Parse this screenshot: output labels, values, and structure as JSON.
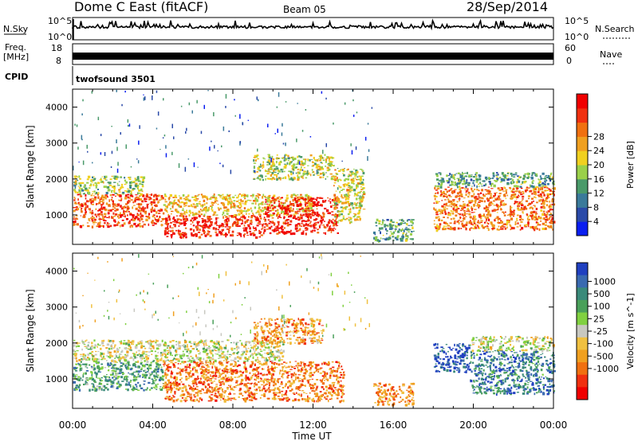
{
  "header": {
    "station": "Dome C East (fitACF)",
    "beam": "Beam 05",
    "date": "28/Sep/2014"
  },
  "top_panels": {
    "nsky_label": "N.Sky",
    "nsky_ticks": [
      "10^5",
      "10^0"
    ],
    "nsearch_label": "N.Search",
    "freq_label_1": "Freq.",
    "freq_label_2": "[MHz]",
    "freq_ticks": [
      "18",
      "8"
    ],
    "nave_label": "Nave",
    "nave_ticks": [
      "60",
      "0"
    ],
    "cpid_label": "CPID",
    "cpid_value": "twofsound 3501"
  },
  "chart_data": [
    {
      "type": "heatmap",
      "name": "Power",
      "xlabel": "Time UT",
      "ylabel": "Slant Range [km]",
      "xlim": [
        0,
        24
      ],
      "ylim": [
        180,
        4500
      ],
      "x_ticks": [
        "00:00",
        "04:00",
        "08:00",
        "12:00",
        "16:00",
        "20:00",
        "00:00"
      ],
      "y_ticks": [
        "1000",
        "2000",
        "3000",
        "4000"
      ],
      "colorbar": {
        "label": "Power [dB]",
        "ticks": [
          "4",
          "8",
          "12",
          "16",
          "20",
          "24",
          "28"
        ],
        "colors": [
          "#0a1ef0",
          "#2a4aa8",
          "#3a7a9a",
          "#4a9a6a",
          "#9ad04a",
          "#f0d020",
          "#f0a020",
          "#f07010",
          "#f03010",
          "#f00000"
        ]
      },
      "regions": [
        {
          "t0": 0.0,
          "t1": 4.5,
          "r0": 700,
          "r1": 1600,
          "level": 0.8
        },
        {
          "t0": 0.0,
          "t1": 3.5,
          "r0": 1600,
          "r1": 2100,
          "level": 0.45
        },
        {
          "t0": 4.5,
          "t1": 9.5,
          "r0": 400,
          "r1": 1000,
          "level": 0.9
        },
        {
          "t0": 4.5,
          "t1": 12.0,
          "r0": 1000,
          "r1": 1600,
          "level": 0.6
        },
        {
          "t0": 9.5,
          "t1": 13.2,
          "r0": 500,
          "r1": 1500,
          "level": 0.9
        },
        {
          "t0": 9.0,
          "t1": 13.0,
          "r0": 2000,
          "r1": 2700,
          "level": 0.5
        },
        {
          "t0": 13.0,
          "t1": 14.5,
          "r0": 800,
          "r1": 2300,
          "level": 0.55
        },
        {
          "t0": 15.0,
          "t1": 17.0,
          "r0": 300,
          "r1": 900,
          "level": 0.35
        },
        {
          "t0": 18.0,
          "t1": 24.0,
          "r0": 600,
          "r1": 1800,
          "level": 0.75
        },
        {
          "t0": 18.0,
          "t1": 24.0,
          "r0": 1800,
          "r1": 2200,
          "level": 0.35
        }
      ]
    },
    {
      "type": "heatmap",
      "name": "Velocity",
      "xlabel": "Time UT",
      "ylabel": "Slant Range [km]",
      "xlim": [
        0,
        24
      ],
      "ylim": [
        180,
        4500
      ],
      "x_ticks": [
        "00:00",
        "04:00",
        "08:00",
        "12:00",
        "16:00",
        "20:00",
        "00:00"
      ],
      "y_ticks": [
        "1000",
        "2000",
        "3000",
        "4000"
      ],
      "colorbar": {
        "label": "Velocity [m s^-1]",
        "ticks": [
          "1000",
          "500",
          "100",
          "25",
          "-25",
          "-100",
          "-500",
          "-1000"
        ],
        "colors": [
          "#2040c0",
          "#3a6ab0",
          "#3a8a7a",
          "#4aa05a",
          "#80d040",
          "#c8c8c0",
          "#f0c040",
          "#f0a020",
          "#f07010",
          "#f03010",
          "#f00000"
        ]
      },
      "regions": [
        {
          "t0": 0.0,
          "t1": 4.5,
          "r0": 700,
          "r1": 1500,
          "level": 0.3
        },
        {
          "t0": 0.0,
          "t1": 10.5,
          "r0": 1500,
          "r1": 2100,
          "level": 0.5
        },
        {
          "t0": 4.5,
          "t1": 13.5,
          "r0": 400,
          "r1": 1500,
          "level": 0.75
        },
        {
          "t0": 9.0,
          "t1": 12.5,
          "r0": 2000,
          "r1": 2700,
          "level": 0.7
        },
        {
          "t0": 15.0,
          "t1": 17.0,
          "r0": 300,
          "r1": 900,
          "level": 0.72
        },
        {
          "t0": 18.0,
          "t1": 19.8,
          "r0": 1200,
          "r1": 2000,
          "level": 0.05
        },
        {
          "t0": 19.8,
          "t1": 24.0,
          "r0": 600,
          "r1": 1800,
          "level": 0.2
        },
        {
          "t0": 19.8,
          "t1": 24.0,
          "r0": 1800,
          "r1": 2200,
          "level": 0.5
        }
      ]
    }
  ]
}
